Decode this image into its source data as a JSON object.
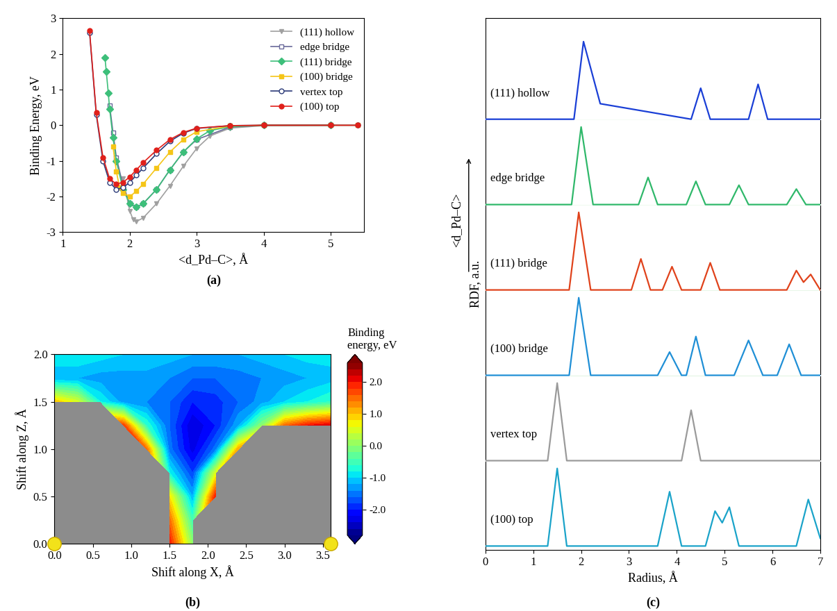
{
  "chart_data": [
    {
      "type": "line",
      "panel_label": "(a)",
      "xlabel": "<d_Pd–C>, Å",
      "ylabel": "Binding Energy, eV",
      "xlim": [
        1,
        5.5
      ],
      "xticks": [
        1,
        2,
        3,
        4,
        5
      ],
      "ylim": [
        -3,
        3
      ],
      "yticks": [
        -3,
        -2,
        -1,
        0,
        1,
        2,
        3
      ],
      "legend": "upper right",
      "series": [
        {
          "name": "(111) hollow",
          "color": "#a0a0a0",
          "marker": "triangle_down",
          "x": [
            1.9,
            2.0,
            2.05,
            2.1,
            2.2,
            2.4,
            2.6,
            2.8,
            3.0,
            3.2,
            3.5,
            4.0,
            5.0
          ],
          "values": [
            -1.5,
            -2.4,
            -2.65,
            -2.7,
            -2.6,
            -2.2,
            -1.7,
            -1.15,
            -0.65,
            -0.3,
            -0.08,
            -0.01,
            0
          ]
        },
        {
          "name": "edge bridge",
          "color": "#6a6a9a",
          "marker": "open_square",
          "x": [
            1.7,
            1.75,
            1.8,
            1.9,
            2.0,
            2.1,
            2.2,
            2.4,
            2.6,
            2.8,
            3.0,
            3.5,
            4.0,
            5.0
          ],
          "values": [
            0.55,
            -0.2,
            -0.9,
            -1.7,
            -2.2,
            -2.3,
            -2.2,
            -1.8,
            -1.25,
            -0.75,
            -0.4,
            -0.05,
            0,
            0
          ]
        },
        {
          "name": "(111) bridge",
          "color": "#3dbf7a",
          "marker": "diamond",
          "x": [
            1.63,
            1.65,
            1.68,
            1.7,
            1.75,
            1.8,
            1.9,
            2.0,
            2.1,
            2.2,
            2.4,
            2.6,
            2.8,
            3.0,
            3.2,
            3.5,
            4.0,
            5.0
          ],
          "values": [
            1.9,
            1.5,
            0.9,
            0.45,
            -0.35,
            -1.0,
            -1.8,
            -2.2,
            -2.3,
            -2.2,
            -1.8,
            -1.25,
            -0.75,
            -0.38,
            -0.15,
            -0.04,
            0,
            0
          ]
        },
        {
          "name": "(100) bridge",
          "color": "#f5c518",
          "marker": "square",
          "x": [
            1.75,
            1.8,
            1.85,
            1.9,
            2.0,
            2.1,
            2.2,
            2.4,
            2.6,
            2.8,
            3.0,
            3.5,
            4.0,
            5.0,
            5.4
          ],
          "values": [
            -0.6,
            -1.3,
            -1.75,
            -1.9,
            -2.0,
            -1.85,
            -1.65,
            -1.2,
            -0.75,
            -0.4,
            -0.18,
            -0.02,
            0,
            0,
            0
          ]
        },
        {
          "name": "vertex top",
          "color": "#2b3a78",
          "marker": "open_circle",
          "x": [
            1.4,
            1.5,
            1.6,
            1.7,
            1.8,
            1.9,
            2.0,
            2.1,
            2.2,
            2.4,
            2.6,
            2.8,
            3.0,
            3.5,
            4.0,
            5.0,
            5.4
          ],
          "values": [
            2.6,
            0.3,
            -1.0,
            -1.6,
            -1.8,
            -1.75,
            -1.6,
            -1.4,
            -1.2,
            -0.8,
            -0.45,
            -0.22,
            -0.09,
            -0.01,
            0,
            0,
            0
          ]
        },
        {
          "name": "(100) top",
          "color": "#e0201b",
          "marker": "circle",
          "x": [
            1.4,
            1.5,
            1.6,
            1.7,
            1.8,
            1.9,
            2.0,
            2.1,
            2.2,
            2.4,
            2.6,
            2.8,
            3.0,
            3.5,
            4.0,
            5.0,
            5.4
          ],
          "values": [
            2.65,
            0.35,
            -0.9,
            -1.5,
            -1.65,
            -1.6,
            -1.45,
            -1.25,
            -1.05,
            -0.7,
            -0.4,
            -0.2,
            -0.08,
            -0.01,
            0,
            0,
            0
          ]
        }
      ]
    },
    {
      "type": "contour",
      "panel_label": "(b)",
      "xlabel": "Shift along X, Å",
      "ylabel": "Shift along Z, Å",
      "xlim": [
        0.0,
        3.6
      ],
      "xticks": [
        0.0,
        0.5,
        1.0,
        1.5,
        2.0,
        2.5,
        3.0,
        3.5
      ],
      "ylim": [
        0.0,
        2.0
      ],
      "yticks": [
        0.0,
        0.5,
        1.0,
        1.5,
        2.0
      ],
      "x": [
        0.0,
        0.3,
        0.6,
        0.9,
        1.2,
        1.5,
        1.8,
        2.1,
        2.4,
        2.7,
        3.0,
        3.3,
        3.6
      ],
      "y": [
        0.0,
        0.25,
        0.5,
        0.75,
        1.0,
        1.25,
        1.5,
        1.75,
        2.0
      ],
      "cells": [
        [
          null,
          null,
          null,
          null,
          null,
          2.0,
          0.0,
          null,
          null,
          null,
          null,
          null,
          null
        ],
        [
          null,
          null,
          null,
          null,
          null,
          1.5,
          -0.5,
          null,
          null,
          null,
          null,
          null,
          null
        ],
        [
          null,
          null,
          null,
          null,
          null,
          0.8,
          -1.2,
          2.0,
          null,
          null,
          null,
          null,
          null
        ],
        [
          null,
          null,
          null,
          null,
          null,
          -0.8,
          -1.8,
          0.5,
          null,
          null,
          null,
          null,
          null
        ],
        [
          null,
          null,
          null,
          null,
          1.5,
          -1.5,
          -2.3,
          -1.5,
          1.2,
          null,
          null,
          null,
          null
        ],
        [
          null,
          null,
          null,
          1.8,
          -0.6,
          -1.6,
          -2.4,
          -2.0,
          -1.2,
          0.0,
          1.5,
          2.0,
          2.2
        ],
        [
          1.0,
          0.5,
          -0.8,
          -1.3,
          -1.4,
          -1.6,
          -2.0,
          -1.9,
          -1.6,
          -1.3,
          -1.0,
          -0.8,
          -0.6
        ],
        [
          -1.2,
          -1.2,
          -1.3,
          -1.3,
          -1.3,
          -1.4,
          -1.6,
          -1.6,
          -1.5,
          -1.4,
          -1.3,
          -1.2,
          -1.1
        ],
        [
          -0.8,
          -0.8,
          -0.9,
          -1.0,
          -1.0,
          -1.1,
          -1.2,
          -1.2,
          -1.2,
          -1.1,
          -1.0,
          -0.9,
          -0.9
        ]
      ],
      "colorbar": {
        "title": "Binding\nenergy, eV",
        "range": [
          -2.8,
          2.6
        ],
        "ticks": [
          -2.0,
          -1.0,
          0.0,
          1.0,
          2.0
        ]
      }
    },
    {
      "type": "waterfall",
      "panel_label": "(c)",
      "xlabel": "Radius, Å",
      "ylabel": "RDF, a.u.",
      "depth_label": "<d_Pd–C>",
      "xlim": [
        0,
        7
      ],
      "xticks": [
        0,
        1,
        2,
        3,
        4,
        5,
        6,
        7
      ],
      "tick_labels": "x",
      "series": [
        {
          "name": "(100) top",
          "color": "#1aa3c9",
          "x": [
            0,
            1.3,
            1.5,
            1.7,
            3.6,
            3.85,
            4.1,
            4.6,
            4.8,
            4.95,
            5.1,
            5.3,
            6.5,
            6.75,
            7.0
          ],
          "values": [
            0,
            0,
            1.0,
            0,
            0,
            0.7,
            0,
            0,
            0.45,
            0.3,
            0.5,
            0,
            0,
            0.6,
            0.1
          ]
        },
        {
          "name": "vertex top",
          "color": "#9a9a9a",
          "x": [
            0,
            1.3,
            1.5,
            1.7,
            4.1,
            4.3,
            4.5,
            7
          ],
          "values": [
            0,
            0,
            1.0,
            0,
            0,
            0.65,
            0,
            0
          ]
        },
        {
          "name": "(100) bridge",
          "color": "#1f8fd6",
          "x": [
            0,
            1.75,
            1.95,
            2.2,
            3.6,
            3.85,
            4.1,
            4.2,
            4.4,
            4.6,
            5.2,
            5.5,
            5.8,
            6.1,
            6.35,
            6.6,
            7
          ],
          "values": [
            0,
            0,
            1.0,
            0,
            0,
            0.3,
            0,
            0,
            0.5,
            0,
            0,
            0.45,
            0,
            0,
            0.4,
            0,
            0
          ]
        },
        {
          "name": "(111) bridge",
          "color": "#e0421b",
          "x": [
            0,
            1.75,
            1.95,
            2.2,
            3.05,
            3.25,
            3.45,
            3.7,
            3.9,
            4.1,
            4.5,
            4.7,
            4.9,
            6.3,
            6.5,
            6.65,
            6.8,
            7
          ],
          "values": [
            0,
            0,
            1.0,
            0,
            0,
            0.4,
            0,
            0,
            0.3,
            0,
            0,
            0.35,
            0,
            0,
            0.25,
            0.1,
            0.2,
            0
          ]
        },
        {
          "name": "edge bridge",
          "color": "#2fb86a",
          "x": [
            0,
            1.8,
            2.0,
            2.25,
            3.2,
            3.4,
            3.6,
            4.2,
            4.4,
            4.6,
            5.1,
            5.3,
            5.5,
            6.3,
            6.5,
            6.7,
            7
          ],
          "values": [
            0,
            0,
            1.0,
            0,
            0,
            0.35,
            0,
            0,
            0.3,
            0,
            0,
            0.25,
            0,
            0,
            0.2,
            0,
            0
          ]
        },
        {
          "name": "(111) hollow",
          "color": "#1a3fd6",
          "x": [
            0,
            1.85,
            2.05,
            2.4,
            4.3,
            4.5,
            4.7,
            5.5,
            5.7,
            5.9,
            7
          ],
          "values": [
            0,
            0,
            1.0,
            0.2,
            0,
            0.4,
            0,
            0,
            0.45,
            0,
            0
          ]
        }
      ]
    }
  ]
}
